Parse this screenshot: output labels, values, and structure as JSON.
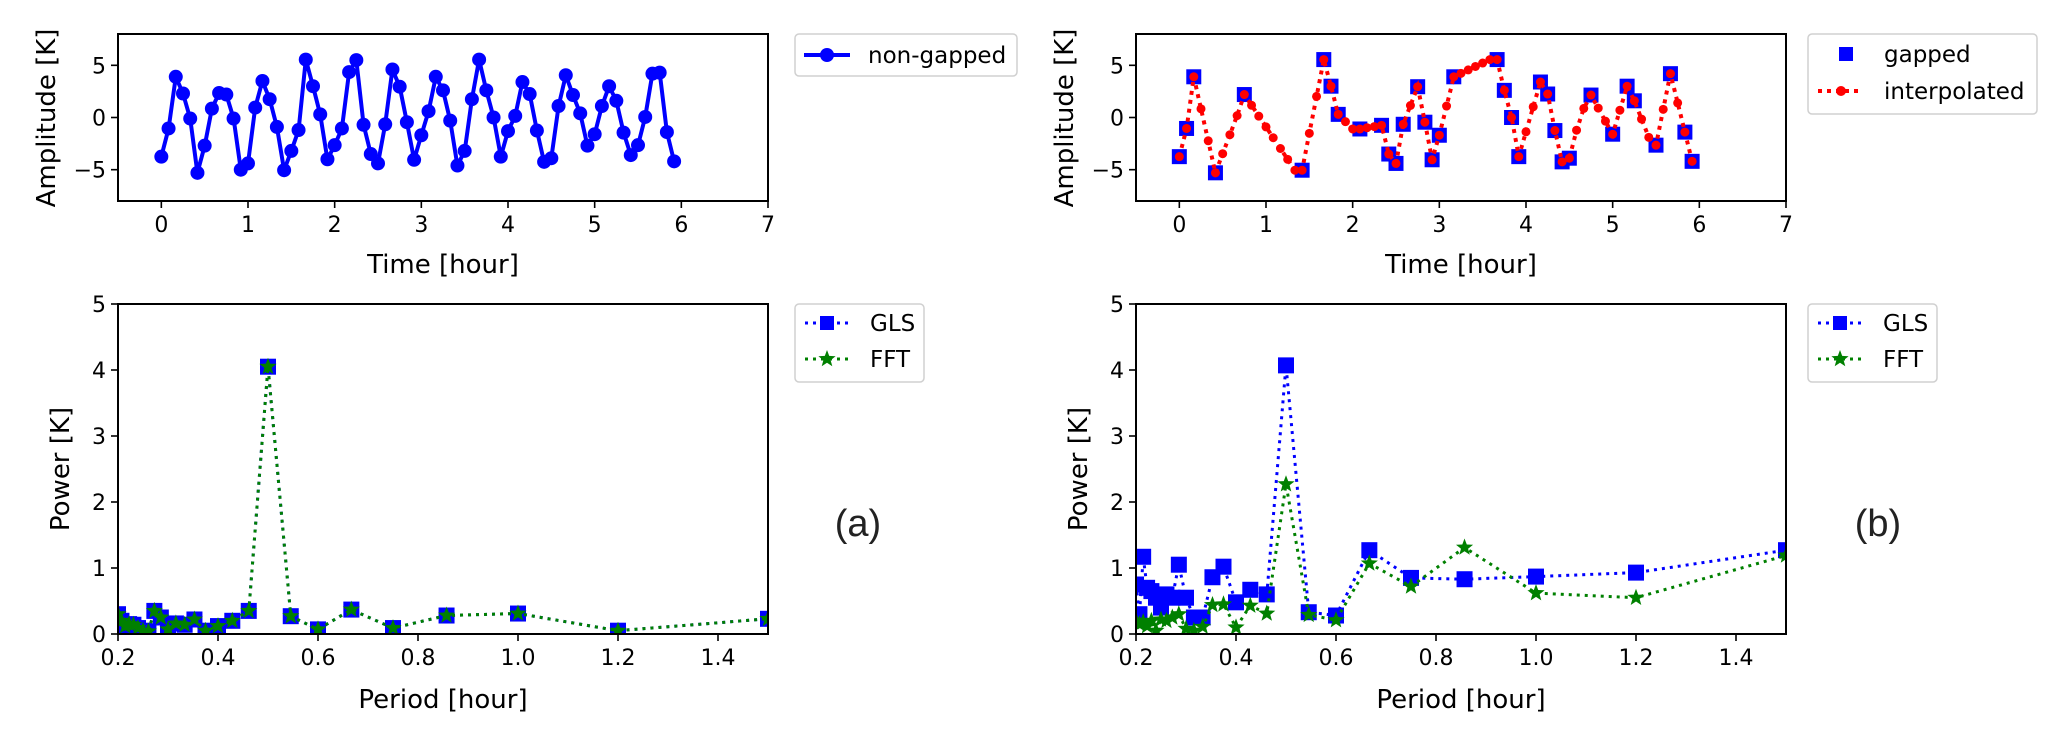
{
  "figure": {
    "panel_labels": [
      "(a)",
      "(b)"
    ]
  },
  "chart_data": [
    {
      "id": "top_left",
      "type": "line",
      "panel": "(a)",
      "title": "",
      "xlabel": "Time [hour]",
      "ylabel": "Amplitude [K]",
      "xlim": [
        -0.5,
        7
      ],
      "ylim": [
        -8,
        8
      ],
      "xticks": [
        0,
        1,
        2,
        3,
        4,
        5,
        6,
        7
      ],
      "xtick_labels": [
        "0",
        "1",
        "2",
        "3",
        "4",
        "5",
        "6",
        "7"
      ],
      "yticks": [
        -5,
        0,
        5
      ],
      "ytick_labels": [
        "−5",
        "0",
        "5"
      ],
      "grid": false,
      "legend_position": "outside-top-right",
      "series": [
        {
          "name": "non-gapped",
          "style": "solid-line-circle-markers",
          "color": "#0000ff",
          "x": [
            0,
            0.0833,
            0.1667,
            0.25,
            0.3333,
            0.4167,
            0.5,
            0.5833,
            0.6667,
            0.75,
            0.8333,
            0.9167,
            1.0,
            1.0833,
            1.1667,
            1.25,
            1.3333,
            1.4167,
            1.5,
            1.5833,
            1.6667,
            1.75,
            1.8333,
            1.9167,
            2.0,
            2.0833,
            2.1667,
            2.25,
            2.3333,
            2.4167,
            2.5,
            2.5833,
            2.6667,
            2.75,
            2.8333,
            2.9167,
            3.0,
            3.0833,
            3.1667,
            3.25,
            3.3333,
            3.4167,
            3.5,
            3.5833,
            3.6667,
            3.75,
            3.8333,
            3.9167,
            4.0,
            4.0833,
            4.1667,
            4.25,
            4.3333,
            4.4167,
            4.5,
            4.5833,
            4.6667,
            4.75,
            4.8333,
            4.9167,
            5.0,
            5.0833,
            5.1667,
            5.25,
            5.3333,
            5.4167,
            5.5,
            5.5833,
            5.6667,
            5.75,
            5.8333,
            5.9167
          ],
          "y": [
            -3.75,
            -1.05,
            3.9,
            2.3,
            -0.1,
            -5.3,
            -2.7,
            0.85,
            2.35,
            2.2,
            -0.1,
            -5.0,
            -4.4,
            0.95,
            3.5,
            1.75,
            -0.9,
            -5.05,
            -3.2,
            -1.2,
            5.55,
            3.0,
            0.3,
            -4.0,
            -2.65,
            -1.05,
            4.35,
            5.5,
            -0.7,
            -3.5,
            -4.4,
            -0.65,
            4.6,
            2.95,
            -0.45,
            -4.05,
            -1.7,
            0.6,
            3.9,
            2.6,
            -0.3,
            -4.6,
            -3.2,
            1.75,
            5.55,
            2.6,
            0.0,
            -3.75,
            -1.3,
            0.15,
            3.4,
            2.25,
            -1.25,
            -4.25,
            -3.9,
            1.1,
            4.05,
            2.15,
            0.4,
            -2.7,
            -1.6,
            1.1,
            3.0,
            1.6,
            -1.45,
            -3.6,
            -2.65,
            0.05,
            4.2,
            4.3,
            -1.4,
            -4.2
          ]
        }
      ]
    },
    {
      "id": "top_right",
      "type": "line",
      "panel": "(b)",
      "title": "",
      "xlabel": "Time [hour]",
      "ylabel": "Amplitude [K]",
      "xlim": [
        -0.5,
        7
      ],
      "ylim": [
        -8,
        8
      ],
      "xticks": [
        0,
        1,
        2,
        3,
        4,
        5,
        6,
        7
      ],
      "xtick_labels": [
        "0",
        "1",
        "2",
        "3",
        "4",
        "5",
        "6",
        "7"
      ],
      "yticks": [
        -5,
        0,
        5
      ],
      "ytick_labels": [
        "−5",
        "0",
        "5"
      ],
      "grid": false,
      "legend_position": "outside-top-right",
      "series": [
        {
          "name": "gapped",
          "style": "square-markers-only",
          "color": "#0000ff",
          "x": [
            0,
            0.0833,
            0.1667,
            0.4167,
            0.75,
            1.4167,
            1.6667,
            1.75,
            1.8333,
            2.0833,
            2.3333,
            2.4167,
            2.5,
            2.5833,
            2.75,
            2.8333,
            2.9167,
            3.0,
            3.1667,
            3.6667,
            3.75,
            3.8333,
            3.9167,
            4.1667,
            4.25,
            4.3333,
            4.4167,
            4.5,
            4.75,
            5.0,
            5.1667,
            5.25,
            5.5,
            5.6667,
            5.8333,
            5.9167
          ],
          "y": [
            -3.75,
            -1.05,
            3.9,
            -5.3,
            2.2,
            -5.05,
            5.55,
            3.0,
            0.3,
            -1.1,
            -0.75,
            -3.5,
            -4.4,
            -0.65,
            2.95,
            -0.45,
            -4.05,
            -1.7,
            3.9,
            5.55,
            2.6,
            0.0,
            -3.75,
            3.4,
            2.25,
            -1.25,
            -4.25,
            -3.9,
            2.15,
            -1.6,
            3.0,
            1.6,
            -2.65,
            4.2,
            -1.4,
            -4.2
          ]
        },
        {
          "name": "interpolated",
          "style": "dotted-line-circle-markers",
          "color": "#ff0000",
          "x": [
            0,
            0.0833,
            0.1667,
            0.25,
            0.3333,
            0.4167,
            0.5,
            0.5833,
            0.6667,
            0.75,
            0.8333,
            0.9167,
            1.0,
            1.0833,
            1.1667,
            1.25,
            1.3333,
            1.4167,
            1.5,
            1.5833,
            1.6667,
            1.75,
            1.8333,
            1.9167,
            2.0,
            2.0833,
            2.1667,
            2.25,
            2.3333,
            2.4167,
            2.5,
            2.5833,
            2.6667,
            2.75,
            2.8333,
            2.9167,
            3.0,
            3.0833,
            3.1667,
            3.25,
            3.3333,
            3.4167,
            3.5,
            3.5833,
            3.6667,
            3.75,
            3.8333,
            3.9167,
            4.0,
            4.0833,
            4.1667,
            4.25,
            4.3333,
            4.4167,
            4.5,
            4.5833,
            4.6667,
            4.75,
            4.8333,
            4.9167,
            5.0,
            5.0833,
            5.1667,
            5.25,
            5.3333,
            5.4167,
            5.5,
            5.5833,
            5.6667,
            5.75,
            5.8333,
            5.9167
          ],
          "y": [
            -3.75,
            -1.05,
            3.9,
            0.83,
            -2.23,
            -5.3,
            -3.47,
            -1.65,
            0.18,
            2.2,
            1.17,
            0.13,
            -0.9,
            -1.94,
            -2.97,
            -4.01,
            -5.05,
            -5.05,
            -1.52,
            2.02,
            5.55,
            3.0,
            0.3,
            -0.4,
            -1.1,
            -1.1,
            -0.98,
            -0.87,
            -0.75,
            -3.5,
            -4.4,
            -0.65,
            1.15,
            2.95,
            -0.45,
            -4.05,
            -1.7,
            1.1,
            3.9,
            4.23,
            4.56,
            4.89,
            5.22,
            5.55,
            5.55,
            2.6,
            0.0,
            -3.75,
            -1.37,
            1.02,
            3.4,
            2.25,
            -1.25,
            -4.25,
            -3.9,
            -1.22,
            0.87,
            2.15,
            0.9,
            -0.35,
            -1.6,
            0.7,
            3.0,
            1.6,
            -0.15,
            -1.9,
            -2.65,
            0.78,
            4.2,
            1.4,
            -1.4,
            -4.2
          ]
        }
      ]
    },
    {
      "id": "bottom_left",
      "type": "line",
      "panel": "(a)",
      "title": "",
      "xlabel": "Period [hour]",
      "ylabel": "Power [K]",
      "xlim": [
        0.2,
        1.5
      ],
      "ylim": [
        0,
        5
      ],
      "xticks": [
        0.2,
        0.4,
        0.6,
        0.8,
        1.0,
        1.2,
        1.4
      ],
      "xtick_labels": [
        "0.2",
        "0.4",
        "0.6",
        "0.8",
        "1.0",
        "1.2",
        "1.4"
      ],
      "yticks": [
        0,
        1,
        2,
        3,
        4,
        5
      ],
      "ytick_labels": [
        "0",
        "1",
        "2",
        "3",
        "4",
        "5"
      ],
      "grid": false,
      "legend_position": "outside-top-right",
      "series": [
        {
          "name": "GLS",
          "style": "dotted-line-square-markers",
          "color": "#0000ff",
          "x": [
            0.2,
            0.2069,
            0.2143,
            0.2222,
            0.2308,
            0.24,
            0.25,
            0.2609,
            0.2727,
            0.2857,
            0.3,
            0.3158,
            0.3333,
            0.3529,
            0.375,
            0.4,
            0.4286,
            0.4615,
            0.5,
            0.5455,
            0.6,
            0.6667,
            0.75,
            0.8571,
            1.0,
            1.2,
            1.5
          ],
          "y": [
            0.3,
            0.2,
            0.12,
            0.15,
            0.14,
            0.09,
            0.05,
            0.04,
            0.35,
            0.25,
            0.07,
            0.16,
            0.14,
            0.22,
            0.05,
            0.12,
            0.2,
            0.35,
            4.05,
            0.27,
            0.07,
            0.37,
            0.09,
            0.28,
            0.31,
            0.05,
            0.23
          ]
        },
        {
          "name": "FFT",
          "style": "dotted-line-star-markers",
          "color": "#008000",
          "x": [
            0.2,
            0.2069,
            0.2143,
            0.2222,
            0.2308,
            0.24,
            0.25,
            0.2609,
            0.2727,
            0.2857,
            0.3,
            0.3158,
            0.3333,
            0.3529,
            0.375,
            0.4,
            0.4286,
            0.4615,
            0.5,
            0.5455,
            0.6,
            0.6667,
            0.75,
            0.8571,
            1.0,
            1.2,
            1.5
          ],
          "y": [
            0.3,
            0.2,
            0.12,
            0.15,
            0.14,
            0.09,
            0.05,
            0.04,
            0.35,
            0.25,
            0.07,
            0.16,
            0.14,
            0.22,
            0.05,
            0.12,
            0.2,
            0.35,
            4.05,
            0.27,
            0.07,
            0.37,
            0.09,
            0.28,
            0.31,
            0.05,
            0.23
          ]
        }
      ]
    },
    {
      "id": "bottom_right",
      "type": "line",
      "panel": "(b)",
      "title": "",
      "xlabel": "Period [hour]",
      "ylabel": "Power [K]",
      "xlim": [
        0.2,
        1.5
      ],
      "ylim": [
        0,
        5
      ],
      "xticks": [
        0.2,
        0.4,
        0.6,
        0.8,
        1.0,
        1.2,
        1.4
      ],
      "xtick_labels": [
        "0.2",
        "0.4",
        "0.6",
        "0.8",
        "1.0",
        "1.2",
        "1.4"
      ],
      "yticks": [
        0,
        1,
        2,
        3,
        4,
        5
      ],
      "ytick_labels": [
        "0",
        "1",
        "2",
        "3",
        "4",
        "5"
      ],
      "grid": false,
      "legend_position": "outside-top-right",
      "series": [
        {
          "name": "GLS",
          "style": "dotted-line-square-markers",
          "color": "#0000ff",
          "x": [
            0.2,
            0.2069,
            0.2143,
            0.2222,
            0.2308,
            0.24,
            0.25,
            0.2609,
            0.2727,
            0.2857,
            0.3,
            0.3158,
            0.3333,
            0.3529,
            0.375,
            0.4,
            0.4286,
            0.4615,
            0.5,
            0.5455,
            0.6,
            0.6667,
            0.75,
            0.8571,
            1.0,
            1.2,
            1.5
          ],
          "y": [
            0.75,
            0.3,
            1.17,
            0.7,
            0.65,
            0.55,
            0.4,
            0.6,
            0.55,
            1.05,
            0.55,
            0.25,
            0.25,
            0.86,
            1.02,
            0.48,
            0.67,
            0.6,
            4.07,
            0.33,
            0.28,
            1.27,
            0.85,
            0.83,
            0.87,
            0.93,
            1.27
          ]
        },
        {
          "name": "FFT",
          "style": "dotted-line-star-markers",
          "color": "#008000",
          "x": [
            0.2,
            0.2069,
            0.2143,
            0.2222,
            0.2308,
            0.24,
            0.25,
            0.2609,
            0.2727,
            0.2857,
            0.3,
            0.3158,
            0.3333,
            0.3529,
            0.375,
            0.4,
            0.4286,
            0.4615,
            0.5,
            0.5455,
            0.6,
            0.6667,
            0.75,
            0.8571,
            1.0,
            1.2,
            1.5
          ],
          "y": [
            0.2,
            0.15,
            0.18,
            0.12,
            0.2,
            0.05,
            0.22,
            0.2,
            0.25,
            0.3,
            0.08,
            0.05,
            0.11,
            0.44,
            0.45,
            0.1,
            0.43,
            0.31,
            2.27,
            0.29,
            0.21,
            1.07,
            0.72,
            1.31,
            0.62,
            0.55,
            1.19
          ]
        }
      ]
    }
  ]
}
